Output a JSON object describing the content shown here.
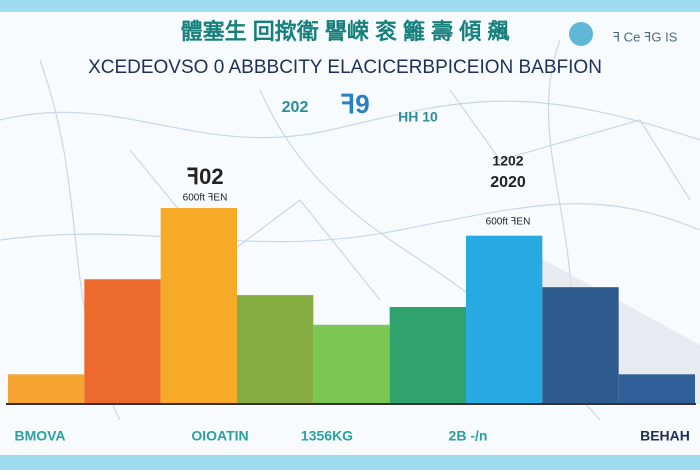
{
  "chart_data": {
    "type": "bar",
    "title": "體塞生 回揿衛 譻嵘 衮 籬 壽 傾 飆",
    "subtitle": "XCEDEOVSO 0 ABBBCITY ELACICERBPICEION BABFION",
    "corner_label": "ꟻ Ce ꟻG IS",
    "header_marks": [
      "202",
      "ꟻ9",
      "HH 10"
    ],
    "annotations": [
      "ꟻ02",
      "600ft ꟻEN",
      "1202",
      "2020",
      "600ft ꟻEN"
    ],
    "categories": [
      null,
      null,
      null,
      null,
      null,
      null,
      null,
      null,
      null
    ],
    "values": [
      15,
      63,
      99,
      55,
      40,
      49,
      85,
      59,
      15
    ],
    "colors": [
      "#f6a532",
      "#ec6a2b",
      "#f6aa27",
      "#86ad42",
      "#7cc653",
      "#30a26b",
      "#27a9e1",
      "#2d5b8e",
      "#2e5f98"
    ],
    "ylim": [
      0,
      100
    ],
    "bottom_labels": [
      "BMOVA",
      "OIOATIN",
      "1356KG",
      "2B -/n",
      "BEHAH"
    ]
  }
}
